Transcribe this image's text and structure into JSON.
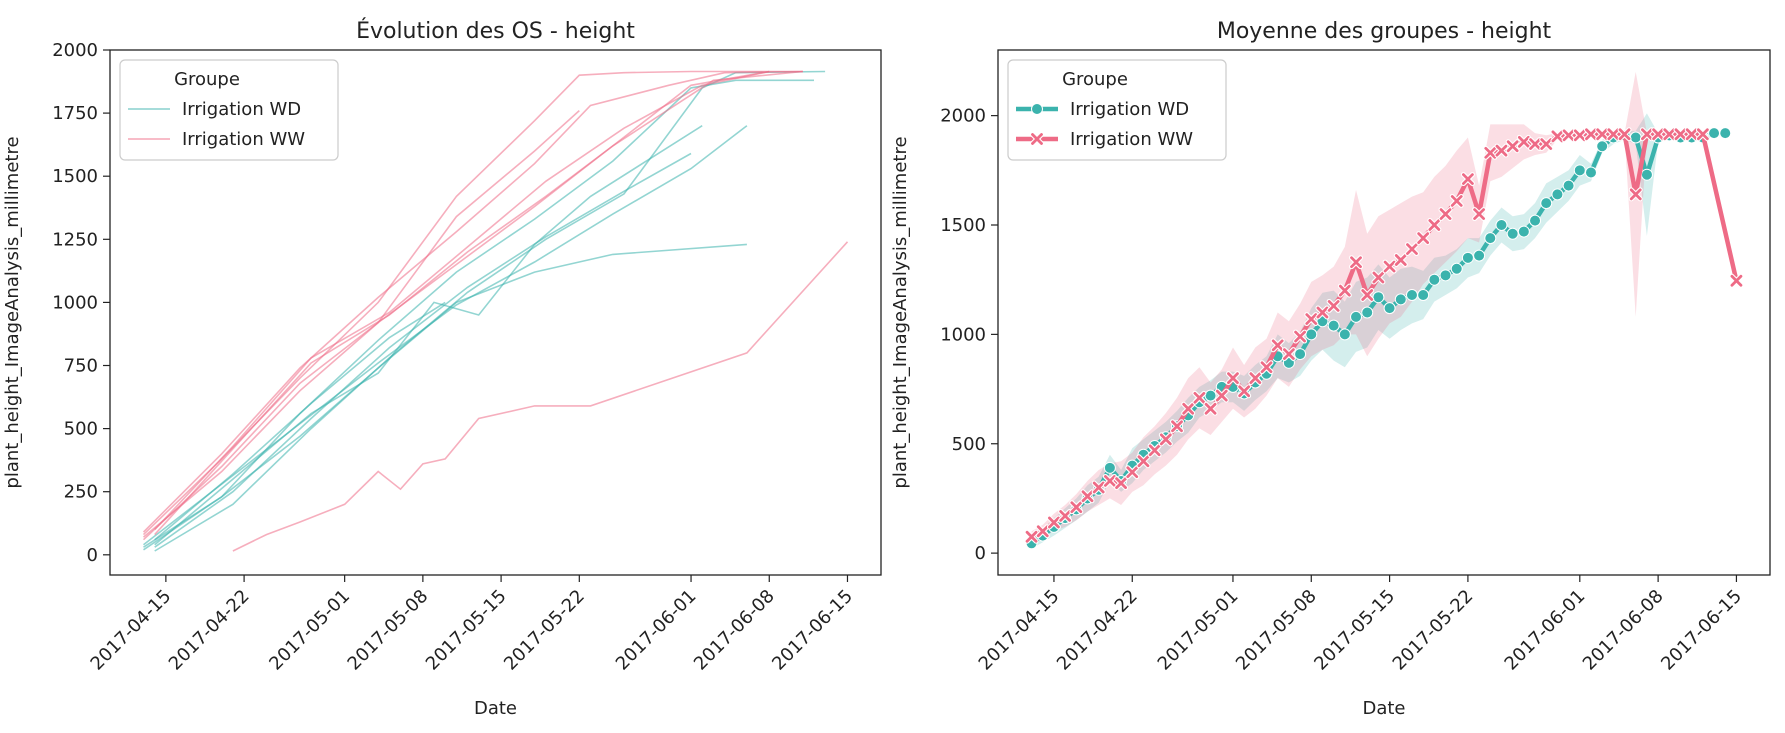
{
  "chart_data": [
    {
      "type": "line",
      "title": "Évolution des OS - height",
      "xlabel": "Date",
      "ylabel": "plant_height_ImageAnalysis_millimetre",
      "x_ticks": [
        "2017-04-15",
        "2017-04-22",
        "2017-05-01",
        "2017-05-08",
        "2017-05-15",
        "2017-05-22",
        "2017-06-01",
        "2017-06-08",
        "2017-06-15"
      ],
      "xlim": [
        "2017-04-10",
        "2017-06-18"
      ],
      "y_ticks": [
        0,
        250,
        500,
        750,
        1000,
        1250,
        1500,
        1750,
        2000
      ],
      "ylim": [
        -80,
        2000
      ],
      "grid": false,
      "legend": {
        "title": "Groupe",
        "placement": "upper-left",
        "entries": [
          "Irrigation WD",
          "Irrigation WW"
        ]
      },
      "colors": {
        "Irrigation WD": "#3bb3ad",
        "Irrigation WW": "#ee6b86"
      },
      "series": [
        {
          "group": "Irrigation WD",
          "x": [
            "2017-04-13",
            "2017-04-20",
            "2017-04-27",
            "2017-05-04",
            "2017-05-11",
            "2017-05-18",
            "2017-05-25",
            "2017-06-01",
            "2017-06-05",
            "2017-06-12"
          ],
          "y": [
            20,
            230,
            560,
            850,
            1120,
            1330,
            1560,
            1850,
            1880,
            1880
          ]
        },
        {
          "group": "Irrigation WD",
          "x": [
            "2017-04-14",
            "2017-04-21",
            "2017-04-28",
            "2017-05-05",
            "2017-05-12",
            "2017-05-19",
            "2017-05-26",
            "2017-06-02",
            "2017-06-05",
            "2017-06-13"
          ],
          "y": [
            15,
            200,
            500,
            780,
            1040,
            1250,
            1430,
            1850,
            1910,
            1915
          ]
        },
        {
          "group": "Irrigation WD",
          "x": [
            "2017-04-13",
            "2017-04-20",
            "2017-04-27",
            "2017-05-04",
            "2017-05-11",
            "2017-05-18",
            "2017-05-25",
            "2017-06-01",
            "2017-06-06"
          ],
          "y": [
            40,
            280,
            520,
            760,
            990,
            1160,
            1350,
            1530,
            1700
          ]
        },
        {
          "group": "Irrigation WD",
          "x": [
            "2017-04-14",
            "2017-04-21",
            "2017-04-28",
            "2017-05-05",
            "2017-05-12",
            "2017-05-19",
            "2017-05-26",
            "2017-06-01"
          ],
          "y": [
            30,
            250,
            540,
            820,
            1060,
            1260,
            1440,
            1590
          ]
        },
        {
          "group": "Irrigation WD",
          "x": [
            "2017-04-13",
            "2017-04-20",
            "2017-04-27",
            "2017-05-04",
            "2017-05-11",
            "2017-05-18",
            "2017-05-25",
            "2017-06-06"
          ],
          "y": [
            30,
            230,
            470,
            740,
            1000,
            1120,
            1190,
            1230
          ]
        },
        {
          "group": "Irrigation WD",
          "x": [
            "2017-04-14",
            "2017-04-21",
            "2017-04-28",
            "2017-05-04",
            "2017-05-09",
            "2017-05-13",
            "2017-05-18",
            "2017-05-23",
            "2017-05-28",
            "2017-06-02"
          ],
          "y": [
            40,
            300,
            560,
            720,
            1000,
            950,
            1230,
            1420,
            1560,
            1700
          ]
        },
        {
          "group": "Irrigation WD",
          "x": [
            "2017-04-14",
            "2017-04-21",
            "2017-04-28",
            "2017-05-05",
            "2017-05-10"
          ],
          "y": [
            60,
            320,
            600,
            860,
            1000
          ]
        },
        {
          "group": "Irrigation WW",
          "x": [
            "2017-04-13",
            "2017-04-20",
            "2017-04-27",
            "2017-05-04",
            "2017-05-11",
            "2017-05-18",
            "2017-05-22",
            "2017-05-26",
            "2017-06-01",
            "2017-06-11"
          ],
          "y": [
            80,
            380,
            700,
            1000,
            1420,
            1720,
            1900,
            1910,
            1915,
            1915
          ]
        },
        {
          "group": "Irrigation WW",
          "x": [
            "2017-04-13",
            "2017-04-20",
            "2017-04-27",
            "2017-05-04",
            "2017-05-11",
            "2017-05-18",
            "2017-05-23",
            "2017-05-30",
            "2017-06-04",
            "2017-06-11"
          ],
          "y": [
            90,
            400,
            740,
            1020,
            1280,
            1550,
            1780,
            1860,
            1910,
            1915
          ]
        },
        {
          "group": "Irrigation WW",
          "x": [
            "2017-04-14",
            "2017-04-21",
            "2017-04-28",
            "2017-05-05",
            "2017-05-12",
            "2017-05-19",
            "2017-05-26",
            "2017-06-02",
            "2017-06-08"
          ],
          "y": [
            100,
            430,
            780,
            960,
            1220,
            1480,
            1690,
            1860,
            1915
          ]
        },
        {
          "group": "Irrigation WW",
          "x": [
            "2017-04-13",
            "2017-04-20",
            "2017-04-27",
            "2017-05-04",
            "2017-05-11",
            "2017-05-18",
            "2017-05-22"
          ],
          "y": [
            60,
            350,
            680,
            920,
            1340,
            1600,
            1760
          ]
        },
        {
          "group": "Irrigation WW",
          "x": [
            "2017-04-14",
            "2017-04-21",
            "2017-04-28",
            "2017-05-05",
            "2017-05-12",
            "2017-05-19",
            "2017-05-25",
            "2017-06-01",
            "2017-06-08"
          ],
          "y": [
            80,
            420,
            760,
            950,
            1200,
            1420,
            1620,
            1860,
            1915
          ]
        },
        {
          "group": "Irrigation WW",
          "x": [
            "2017-04-13",
            "2017-04-20",
            "2017-04-27",
            "2017-05-04",
            "2017-05-11",
            "2017-05-18",
            "2017-05-25",
            "2017-06-03",
            "2017-06-11"
          ],
          "y": [
            70,
            330,
            650,
            920,
            1150,
            1380,
            1620,
            1880,
            1915
          ]
        },
        {
          "group": "Irrigation WW",
          "x": [
            "2017-04-21",
            "2017-04-24",
            "2017-04-27",
            "2017-05-01",
            "2017-05-04",
            "2017-05-06",
            "2017-05-08",
            "2017-05-10",
            "2017-05-13",
            "2017-05-18",
            "2017-05-23",
            "2017-06-06",
            "2017-06-15"
          ],
          "y": [
            15,
            80,
            130,
            200,
            330,
            260,
            360,
            380,
            540,
            590,
            590,
            800,
            1240
          ]
        }
      ]
    },
    {
      "type": "line",
      "title": "Moyenne des groupes - height",
      "xlabel": "Date",
      "ylabel": "plant_height_ImageAnalysis_millimetre",
      "x_ticks": [
        "2017-04-15",
        "2017-04-22",
        "2017-05-01",
        "2017-05-08",
        "2017-05-15",
        "2017-05-22",
        "2017-06-01",
        "2017-06-08",
        "2017-06-15"
      ],
      "xlim": [
        "2017-04-10",
        "2017-06-18"
      ],
      "y_ticks": [
        0,
        500,
        1000,
        1500,
        2000
      ],
      "ylim": [
        -100,
        2300
      ],
      "grid": false,
      "legend": {
        "title": "Groupe",
        "placement": "upper-left",
        "entries": [
          "Irrigation WD",
          "Irrigation WW"
        ]
      },
      "colors": {
        "Irrigation WD": "#3bb3ad",
        "Irrigation WW": "#ee6b86"
      },
      "series": [
        {
          "name": "Irrigation WD",
          "marker": "circle",
          "x": [
            "2017-04-13",
            "2017-04-14",
            "2017-04-15",
            "2017-04-16",
            "2017-04-17",
            "2017-04-18",
            "2017-04-19",
            "2017-04-20",
            "2017-04-21",
            "2017-04-22",
            "2017-04-23",
            "2017-04-24",
            "2017-04-25",
            "2017-04-26",
            "2017-04-27",
            "2017-04-28",
            "2017-04-29",
            "2017-04-30",
            "2017-05-01",
            "2017-05-02",
            "2017-05-03",
            "2017-05-04",
            "2017-05-05",
            "2017-05-06",
            "2017-05-07",
            "2017-05-08",
            "2017-05-09",
            "2017-05-10",
            "2017-05-11",
            "2017-05-12",
            "2017-05-13",
            "2017-05-14",
            "2017-05-15",
            "2017-05-16",
            "2017-05-17",
            "2017-05-18",
            "2017-05-19",
            "2017-05-20",
            "2017-05-21",
            "2017-05-22",
            "2017-05-23",
            "2017-05-24",
            "2017-05-25",
            "2017-05-26",
            "2017-05-27",
            "2017-05-28",
            "2017-05-29",
            "2017-05-30",
            "2017-05-31",
            "2017-06-01",
            "2017-06-02",
            "2017-06-03",
            "2017-06-04",
            "2017-06-05",
            "2017-06-06",
            "2017-06-07",
            "2017-06-08",
            "2017-06-09",
            "2017-06-10",
            "2017-06-11",
            "2017-06-12",
            "2017-06-13",
            "2017-06-14"
          ],
          "y": [
            45,
            80,
            120,
            160,
            200,
            250,
            290,
            390,
            330,
            400,
            450,
            490,
            530,
            580,
            630,
            690,
            720,
            760,
            760,
            730,
            780,
            820,
            900,
            870,
            910,
            1000,
            1060,
            1040,
            1000,
            1080,
            1100,
            1170,
            1120,
            1160,
            1180,
            1180,
            1250,
            1270,
            1300,
            1350,
            1360,
            1440,
            1500,
            1460,
            1470,
            1520,
            1600,
            1640,
            1680,
            1750,
            1740,
            1860,
            1900,
            1910,
            1900,
            1730,
            1900,
            1910,
            1900,
            1900,
            1900,
            1920,
            1920
          ],
          "ci_low": [
            20,
            50,
            80,
            115,
            150,
            190,
            230,
            330,
            280,
            320,
            380,
            420,
            460,
            510,
            550,
            620,
            650,
            690,
            690,
            650,
            700,
            740,
            800,
            780,
            810,
            880,
            930,
            880,
            850,
            920,
            940,
            1020,
            980,
            1020,
            1050,
            1070,
            1150,
            1180,
            1210,
            1260,
            1280,
            1360,
            1420,
            1380,
            1390,
            1440,
            1510,
            1560,
            1610,
            1680,
            1700,
            1830,
            1870,
            1890,
            1870,
            1450,
            1880,
            1900,
            1890,
            1890,
            1890,
            1910,
            1910
          ],
          "ci_high": [
            70,
            110,
            160,
            205,
            250,
            310,
            350,
            450,
            380,
            480,
            520,
            560,
            600,
            650,
            710,
            760,
            790,
            830,
            830,
            810,
            860,
            900,
            1000,
            960,
            1010,
            1120,
            1190,
            1200,
            1150,
            1240,
            1260,
            1320,
            1260,
            1300,
            1310,
            1290,
            1350,
            1360,
            1390,
            1440,
            1440,
            1520,
            1580,
            1540,
            1550,
            1600,
            1690,
            1720,
            1750,
            1820,
            1780,
            1890,
            1930,
            1930,
            1930,
            2010,
            1920,
            1920,
            1910,
            1910,
            1910,
            1930,
            1930
          ]
        },
        {
          "name": "Irrigation WW",
          "marker": "x",
          "x": [
            "2017-04-13",
            "2017-04-14",
            "2017-04-15",
            "2017-04-16",
            "2017-04-17",
            "2017-04-18",
            "2017-04-19",
            "2017-04-20",
            "2017-04-21",
            "2017-04-22",
            "2017-04-23",
            "2017-04-24",
            "2017-04-25",
            "2017-04-26",
            "2017-04-27",
            "2017-04-28",
            "2017-04-29",
            "2017-04-30",
            "2017-05-01",
            "2017-05-02",
            "2017-05-03",
            "2017-05-04",
            "2017-05-05",
            "2017-05-06",
            "2017-05-07",
            "2017-05-08",
            "2017-05-09",
            "2017-05-10",
            "2017-05-11",
            "2017-05-12",
            "2017-05-13",
            "2017-05-14",
            "2017-05-15",
            "2017-05-16",
            "2017-05-17",
            "2017-05-18",
            "2017-05-19",
            "2017-05-20",
            "2017-05-21",
            "2017-05-22",
            "2017-05-23",
            "2017-05-24",
            "2017-05-25",
            "2017-05-26",
            "2017-05-27",
            "2017-05-28",
            "2017-05-29",
            "2017-05-30",
            "2017-05-31",
            "2017-06-01",
            "2017-06-02",
            "2017-06-03",
            "2017-06-04",
            "2017-06-05",
            "2017-06-06",
            "2017-06-07",
            "2017-06-08",
            "2017-06-09",
            "2017-06-10",
            "2017-06-11",
            "2017-06-12",
            "2017-06-15"
          ],
          "y": [
            75,
            100,
            140,
            170,
            210,
            260,
            300,
            330,
            320,
            370,
            420,
            470,
            520,
            580,
            660,
            710,
            660,
            720,
            800,
            740,
            800,
            850,
            950,
            910,
            990,
            1070,
            1100,
            1130,
            1200,
            1330,
            1180,
            1260,
            1310,
            1340,
            1390,
            1440,
            1500,
            1550,
            1610,
            1710,
            1550,
            1830,
            1840,
            1860,
            1880,
            1870,
            1870,
            1905,
            1910,
            1910,
            1915,
            1915,
            1915,
            1915,
            1640,
            1915,
            1915,
            1915,
            1915,
            1915,
            1915,
            1245
          ],
          "ci_low": [
            50,
            70,
            100,
            120,
            150,
            190,
            220,
            250,
            220,
            280,
            310,
            360,
            400,
            450,
            520,
            570,
            540,
            600,
            660,
            620,
            660,
            720,
            800,
            760,
            840,
            900,
            930,
            950,
            1000,
            1000,
            900,
            980,
            1050,
            1080,
            1150,
            1230,
            1280,
            1330,
            1380,
            1440,
            1420,
            1700,
            1720,
            1760,
            1800,
            1820,
            1830,
            1890,
            1900,
            1905,
            1910,
            1910,
            1910,
            1910,
            1080,
            1910,
            1910,
            1910,
            1910,
            1910,
            1910,
            1245
          ],
          "ci_high": [
            100,
            130,
            180,
            220,
            270,
            330,
            380,
            410,
            420,
            460,
            530,
            580,
            640,
            710,
            800,
            850,
            780,
            840,
            940,
            860,
            940,
            980,
            1100,
            1060,
            1140,
            1240,
            1270,
            1310,
            1400,
            1660,
            1460,
            1540,
            1570,
            1600,
            1630,
            1650,
            1720,
            1770,
            1840,
            1900,
            1680,
            1960,
            1960,
            1960,
            1960,
            1920,
            1910,
            1920,
            1920,
            1915,
            1920,
            1920,
            1920,
            1920,
            2200,
            1920,
            1920,
            1920,
            1920,
            1920,
            1920,
            1245
          ]
        }
      ]
    }
  ]
}
